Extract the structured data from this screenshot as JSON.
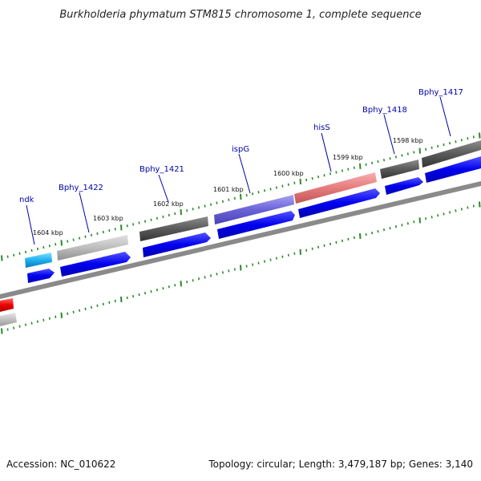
{
  "title": "Burkholderia phymatum STM815 chromosome 1, complete sequence",
  "footer": {
    "accession": "Accession: NC_010622",
    "summary": "Topology: circular; Length: 3,479,187 bp; Genes: 3,140"
  },
  "tick_labels": [
    "1604 kbp",
    "1603 kbp",
    "1602 kbp",
    "1601 kbp",
    "1600 kbp",
    "1599 kbp",
    "1598 kbp"
  ],
  "gene_labels": [
    "ndk",
    "Bphy_1422",
    "Bphy_1421",
    "ispG",
    "hisS",
    "Bphy_1418",
    "Bphy_1417"
  ],
  "colors": {
    "cds_blue": "#0000ee",
    "gene_gray": "#c0c0c0",
    "gene_dark": "#555555",
    "gene_cyan": "#22aaee",
    "gene_purple": "#6a62d8",
    "gene_pink": "#e57b7b",
    "red": "#ee0000",
    "backbone": "#8a8a8a",
    "tick_green": "#2a8a2a",
    "label_blue": "#0000a8"
  }
}
